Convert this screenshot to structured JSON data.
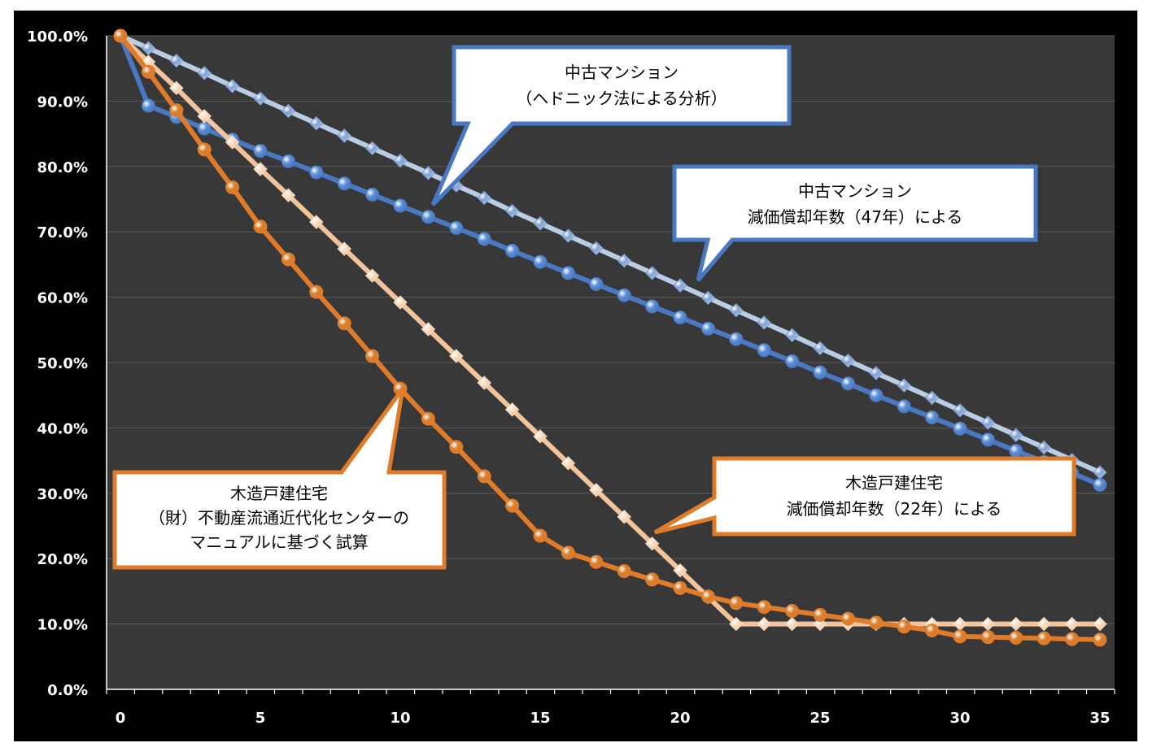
{
  "chart_data": {
    "type": "line",
    "x": [
      0,
      1,
      2,
      3,
      4,
      5,
      6,
      7,
      8,
      9,
      10,
      11,
      12,
      13,
      14,
      15,
      16,
      17,
      18,
      19,
      20,
      21,
      22,
      23,
      24,
      25,
      26,
      27,
      28,
      29,
      30,
      31,
      32,
      33,
      34,
      35
    ],
    "xlim": [
      0,
      35
    ],
    "ylim": [
      0,
      100
    ],
    "y_tick_format": "percent_1dp",
    "x_ticks": [
      "0",
      "5",
      "10",
      "15",
      "20",
      "25",
      "30",
      "35"
    ],
    "y_ticks": [
      "0.0%",
      "10.0%",
      "20.0%",
      "30.0%",
      "40.0%",
      "50.0%",
      "60.0%",
      "70.0%",
      "80.0%",
      "90.0%",
      "100.0%"
    ],
    "grid": "horizontal",
    "legend": "none",
    "series": [
      {
        "name": "",
        "color": "#b9cde6",
        "marker_color": "#7f9fd3",
        "marker": "diamond",
        "values": [
          100.0,
          98.1,
          96.2,
          94.3,
          92.3,
          90.4,
          88.5,
          86.6,
          84.7,
          82.8,
          80.9,
          79.0,
          77.1,
          75.2,
          73.2,
          71.3,
          69.4,
          67.5,
          65.6,
          63.7,
          61.8,
          59.9,
          58.0,
          56.1,
          54.2,
          52.2,
          50.3,
          48.4,
          46.5,
          44.6,
          42.7,
          40.8,
          38.9,
          37.0,
          35.1,
          33.2
        ]
      },
      {
        "name": "",
        "color": "#4a78c2",
        "marker_color": "#5b8fd6",
        "marker": "circle",
        "values": [
          100.0,
          89.3,
          87.6,
          85.8,
          84.1,
          82.4,
          80.8,
          79.1,
          77.4,
          75.7,
          74.0,
          72.3,
          70.6,
          68.9,
          67.1,
          65.4,
          63.7,
          62.0,
          60.3,
          58.6,
          56.9,
          55.2,
          53.6,
          51.9,
          50.2,
          48.5,
          46.8,
          45.0,
          43.3,
          41.6,
          39.9,
          38.2,
          36.5,
          34.8,
          33.1,
          31.3
        ]
      },
      {
        "name": "",
        "color": "#f2c49c",
        "marker_color": "#f7dcc0",
        "marker": "diamond",
        "values": [
          100.0,
          96.0,
          92.0,
          87.7,
          83.7,
          79.6,
          75.6,
          71.5,
          67.4,
          63.3,
          59.2,
          55.1,
          51.0,
          46.9,
          42.8,
          38.7,
          34.6,
          30.5,
          26.4,
          22.3,
          18.2,
          14.1,
          10.0,
          10.0,
          10.0,
          10.0,
          10.0,
          10.0,
          10.0,
          10.0,
          10.0,
          10.0,
          10.0,
          10.0,
          10.0,
          10.0
        ]
      },
      {
        "name": "",
        "color": "#e07b2a",
        "marker_color": "#d97e2a",
        "marker": "circle",
        "values": [
          100.0,
          94.5,
          88.6,
          82.6,
          76.8,
          70.8,
          65.8,
          60.8,
          56.0,
          51.0,
          46.0,
          41.4,
          37.1,
          32.6,
          28.1,
          23.5,
          20.9,
          19.5,
          18.1,
          16.8,
          15.5,
          14.2,
          13.2,
          12.6,
          12.0,
          11.4,
          10.8,
          10.2,
          9.6,
          9.0,
          8.1,
          8.0,
          7.9,
          7.8,
          7.7,
          7.6
        ]
      }
    ],
    "annotations": [
      {
        "lines": [
          "中古マンション",
          "（ヘドニック法による分析）"
        ],
        "border": "#4a78c2"
      },
      {
        "lines": [
          "中古マンション",
          "減価償却年数（47年）による"
        ],
        "border": "#4a78c2"
      },
      {
        "lines": [
          "木造戸建住宅",
          "（財）不動産流通近代化センターの",
          "マニュアルに基づく試算"
        ],
        "border": "#e07b2a"
      },
      {
        "lines": [
          "木造戸建住宅",
          "減価償却年数（22年）による"
        ],
        "border": "#e07b2a"
      }
    ],
    "style": {
      "plot_bg": "#383838",
      "outer_bg": "#000000",
      "grid_color": "#5a5a5a",
      "axis_color": "#ffffff",
      "tick_label_color": "#ffffff"
    }
  }
}
